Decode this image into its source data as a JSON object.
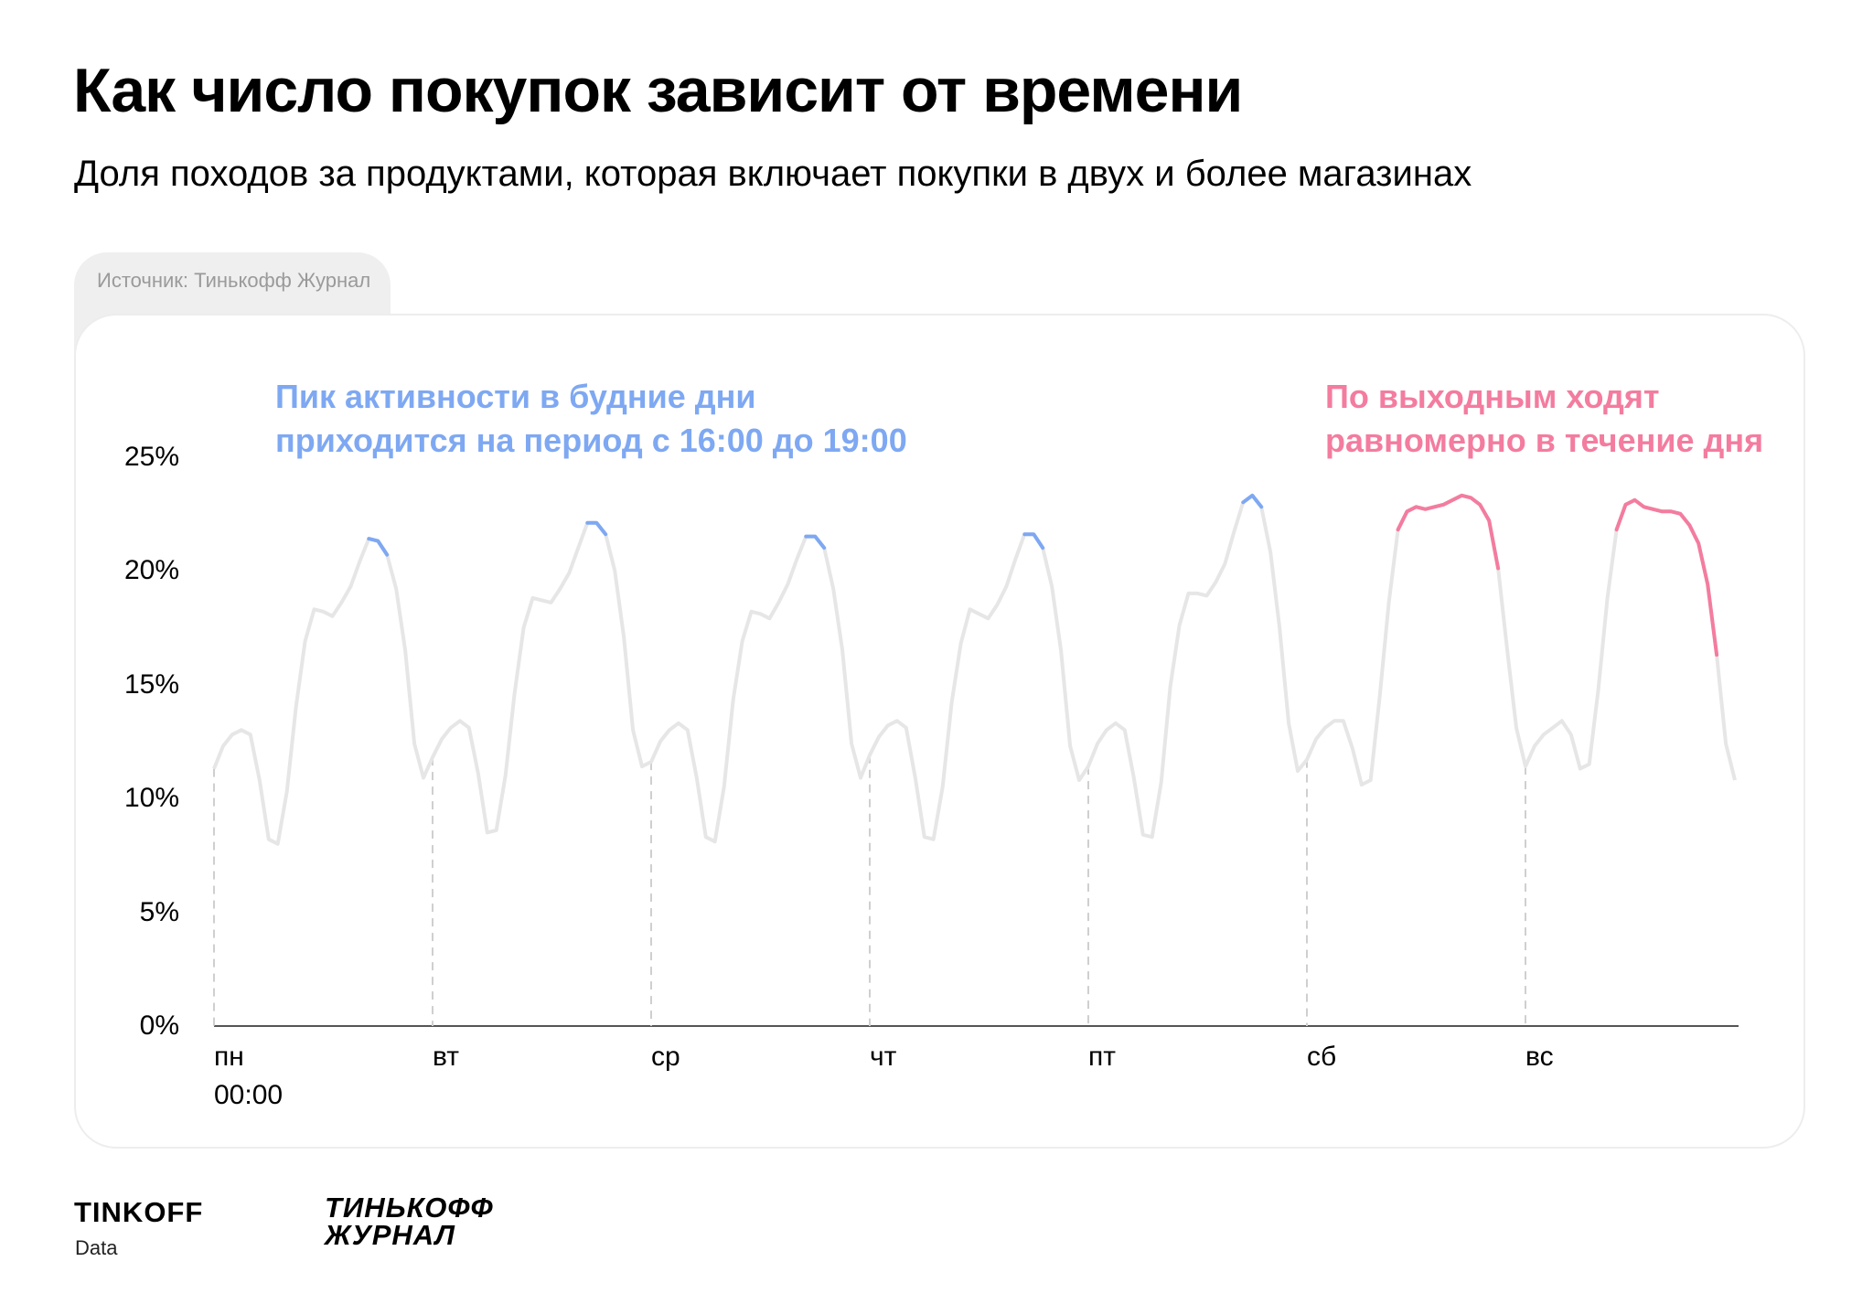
{
  "header": {
    "title": "Как число покупок зависит от времени",
    "subtitle": "Доля походов за продуктами, которая включает покупки в двух и более магазинах"
  },
  "source": {
    "label": "Источник: Тинькофф Журнал"
  },
  "annotations": {
    "weekdays": {
      "line1": "Пик активности в будние дни",
      "line2": "приходится на период с 16:00 до 19:00",
      "color": "#7ea8f2"
    },
    "weekend": {
      "line1": "По выходным ходят",
      "line2": "равномерно в течение дня",
      "color": "#f37c9f"
    }
  },
  "chart_data": {
    "type": "line",
    "title": "Как число покупок зависит от времени",
    "subtitle": "Доля походов за продуктами, которая включает покупки в двух и более магазинах",
    "ylabel": "",
    "xlabel": "",
    "ylim": [
      0,
      25
    ],
    "y_ticks": [
      "0%",
      "5%",
      "10%",
      "15%",
      "20%",
      "25%"
    ],
    "x_day_labels": [
      "пн",
      "вт",
      "ср",
      "чт",
      "пт",
      "сб",
      "вс"
    ],
    "x_first_time_label": "00:00",
    "grid": false,
    "line_color": "#e6e6e6",
    "weekday_peak_color": "#7ea8f2",
    "weekend_peak_color": "#f37c9f",
    "hours_per_day": 24,
    "series": [
      {
        "name": "",
        "values": [
          11.3,
          12.3,
          12.8,
          13.0,
          12.8,
          10.8,
          8.2,
          8.0,
          10.3,
          14.0,
          16.9,
          18.3,
          18.2,
          18.0,
          18.6,
          19.3,
          20.4,
          21.4,
          21.3,
          20.7,
          19.2,
          16.5,
          12.4,
          10.9,
          11.8,
          12.6,
          13.1,
          13.4,
          13.1,
          11.1,
          8.5,
          8.6,
          11.0,
          14.6,
          17.5,
          18.8,
          18.7,
          18.6,
          19.2,
          19.9,
          21.0,
          22.1,
          22.1,
          21.6,
          20.0,
          17.1,
          13.0,
          11.4,
          11.6,
          12.5,
          13.0,
          13.3,
          13.0,
          10.9,
          8.3,
          8.1,
          10.5,
          14.3,
          16.9,
          18.2,
          18.1,
          17.9,
          18.6,
          19.4,
          20.5,
          21.5,
          21.5,
          21.0,
          19.2,
          16.5,
          12.4,
          10.9,
          11.9,
          12.7,
          13.2,
          13.4,
          13.1,
          10.9,
          8.3,
          8.2,
          10.5,
          14.2,
          16.8,
          18.3,
          18.1,
          17.9,
          18.5,
          19.3,
          20.5,
          21.6,
          21.6,
          21.0,
          19.3,
          16.5,
          12.3,
          10.8,
          11.4,
          12.4,
          13.0,
          13.3,
          13.0,
          10.9,
          8.4,
          8.3,
          10.7,
          14.9,
          17.6,
          19.0,
          19.0,
          18.9,
          19.5,
          20.3,
          21.7,
          23.0,
          23.3,
          22.8,
          20.8,
          17.5,
          13.3,
          11.2,
          11.7,
          12.6,
          13.1,
          13.4,
          13.4,
          12.2,
          10.6,
          10.8,
          14.5,
          18.6,
          21.8,
          22.6,
          22.8,
          22.7,
          22.8,
          22.9,
          23.1,
          23.3,
          23.2,
          22.9,
          22.2,
          20.1,
          16.5,
          13.1,
          11.4,
          12.3,
          12.8,
          13.1,
          13.4,
          12.8,
          11.3,
          11.5,
          14.8,
          18.8,
          21.8,
          22.9,
          23.1,
          22.8,
          22.7,
          22.6,
          22.6,
          22.5,
          22.0,
          21.2,
          19.4,
          16.3,
          12.4,
          10.8
        ],
        "highlights": [
          {
            "day": 0,
            "from_hour": 17,
            "to_hour": 19,
            "color": "#7ea8f2"
          },
          {
            "day": 1,
            "from_hour": 17,
            "to_hour": 19,
            "color": "#7ea8f2"
          },
          {
            "day": 2,
            "from_hour": 17,
            "to_hour": 19,
            "color": "#7ea8f2"
          },
          {
            "day": 3,
            "from_hour": 17,
            "to_hour": 19,
            "color": "#7ea8f2"
          },
          {
            "day": 4,
            "from_hour": 17,
            "to_hour": 19,
            "color": "#7ea8f2"
          },
          {
            "day": 5,
            "from_hour": 10,
            "to_hour": 21,
            "color": "#f37c9f"
          },
          {
            "day": 6,
            "from_hour": 10,
            "to_hour": 21,
            "color": "#f37c9f"
          }
        ]
      }
    ]
  },
  "footer": {
    "logo_tinkoff": "TINKOFF",
    "logo_tinkoff_sub": "Data",
    "logo_journal_line1": "ТИНЬКОФФ",
    "logo_journal_line2": "ЖУРНАЛ"
  }
}
